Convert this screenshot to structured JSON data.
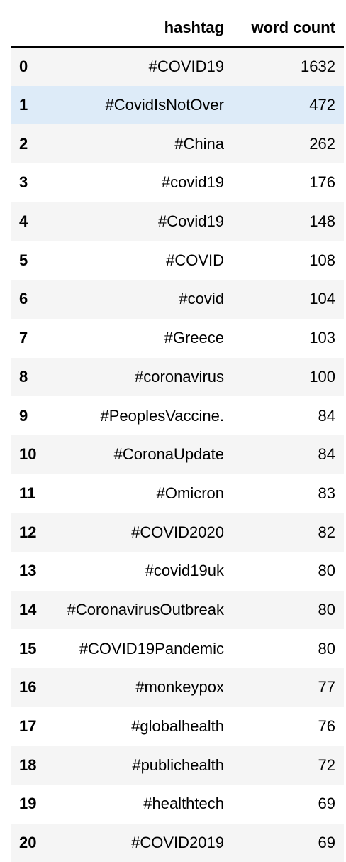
{
  "table": {
    "columns": {
      "hashtag": "hashtag",
      "word_count": "word count"
    },
    "highlight_color": "#ddebf8",
    "stripe_color": "#f5f5f5",
    "rows": [
      {
        "index": "0",
        "hashtag": "#COVID19",
        "count": "1632"
      },
      {
        "index": "1",
        "hashtag": "#CovidIsNotOver",
        "count": "472"
      },
      {
        "index": "2",
        "hashtag": "#China",
        "count": "262"
      },
      {
        "index": "3",
        "hashtag": "#covid19",
        "count": "176"
      },
      {
        "index": "4",
        "hashtag": "#Covid19",
        "count": "148"
      },
      {
        "index": "5",
        "hashtag": "#COVID",
        "count": "108"
      },
      {
        "index": "6",
        "hashtag": "#covid",
        "count": "104"
      },
      {
        "index": "7",
        "hashtag": "#Greece",
        "count": "103"
      },
      {
        "index": "8",
        "hashtag": "#coronavirus",
        "count": "100"
      },
      {
        "index": "9",
        "hashtag": "#PeoplesVaccine.",
        "count": "84"
      },
      {
        "index": "10",
        "hashtag": "#CoronaUpdate",
        "count": "84"
      },
      {
        "index": "11",
        "hashtag": "#Omicron",
        "count": "83"
      },
      {
        "index": "12",
        "hashtag": "#COVID2020",
        "count": "82"
      },
      {
        "index": "13",
        "hashtag": "#covid19uk",
        "count": "80"
      },
      {
        "index": "14",
        "hashtag": "#CoronavirusOutbreak",
        "count": "80"
      },
      {
        "index": "15",
        "hashtag": "#COVID19Pandemic",
        "count": "80"
      },
      {
        "index": "16",
        "hashtag": "#monkeypox",
        "count": "77"
      },
      {
        "index": "17",
        "hashtag": "#globalhealth",
        "count": "76"
      },
      {
        "index": "18",
        "hashtag": "#publichealth",
        "count": "72"
      },
      {
        "index": "19",
        "hashtag": "#healthtech",
        "count": "69"
      },
      {
        "index": "20",
        "hashtag": "#COVID2019",
        "count": "69"
      }
    ]
  }
}
